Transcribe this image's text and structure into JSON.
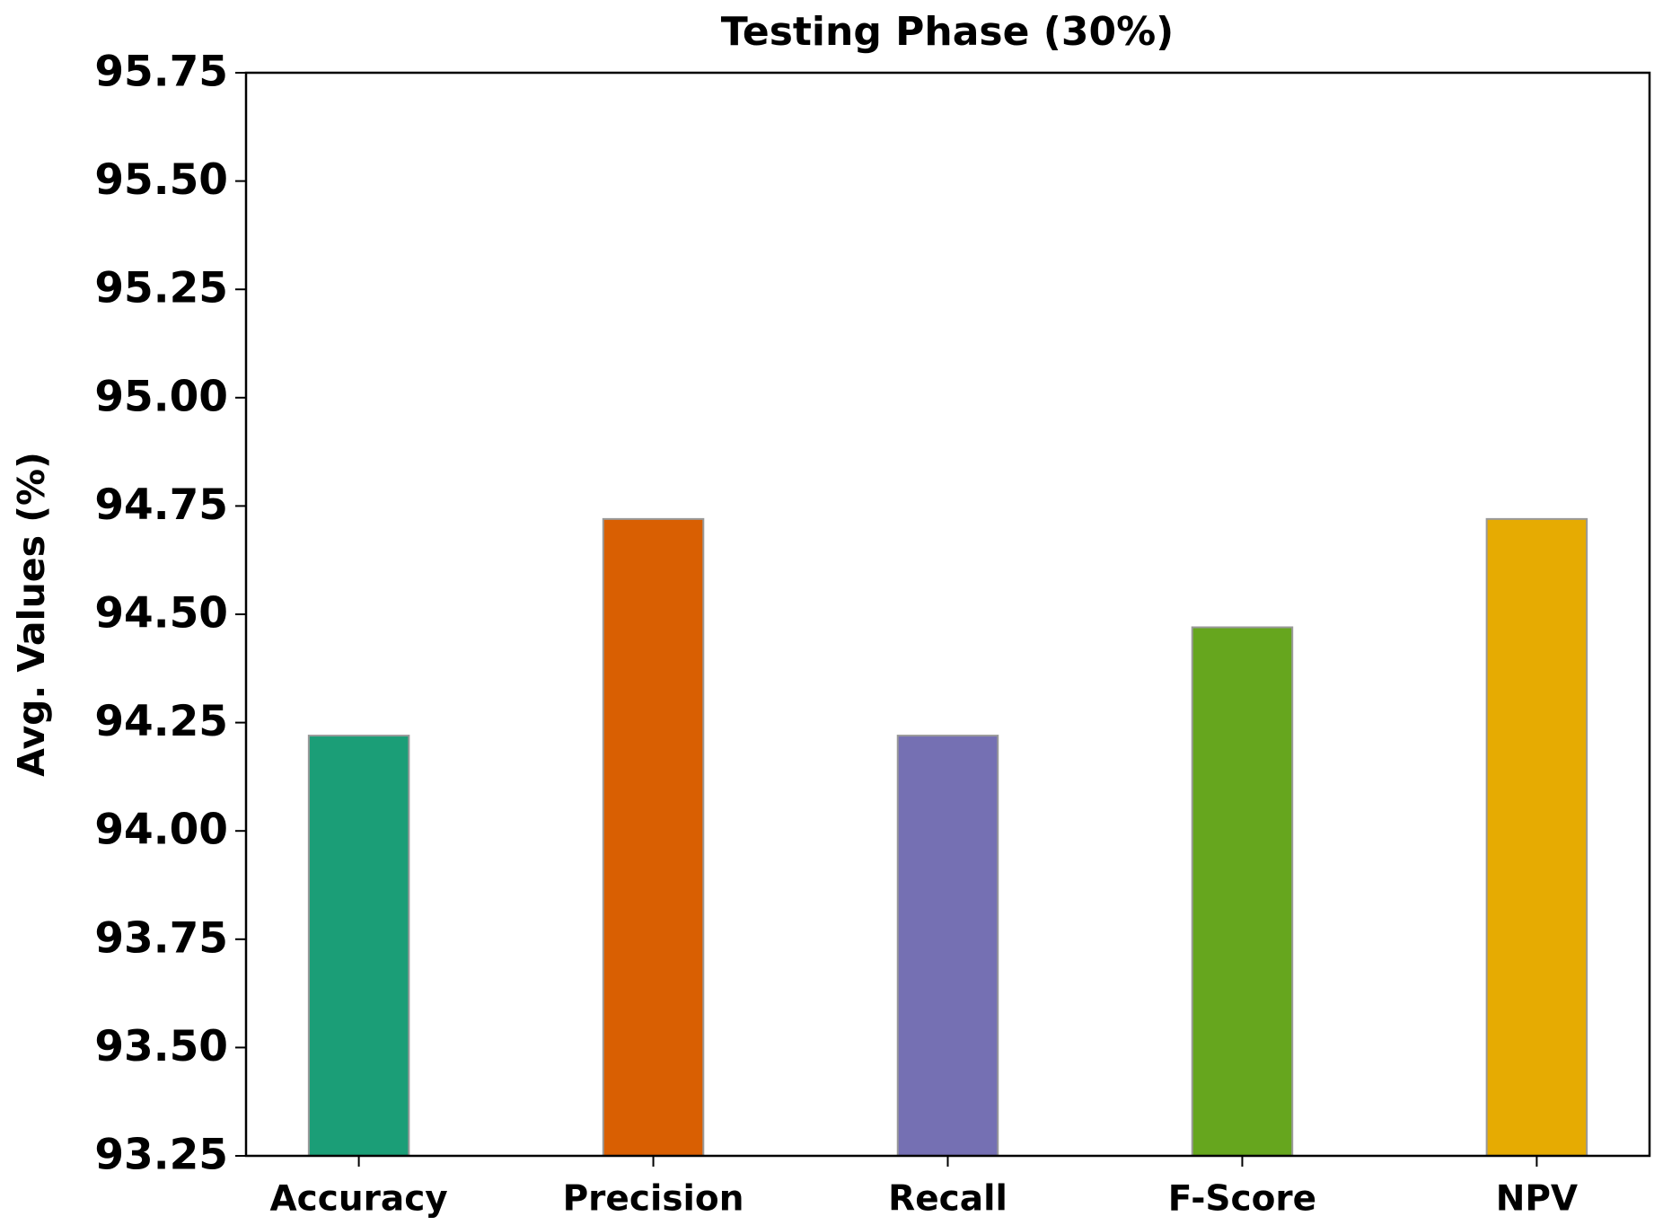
{
  "chart_data": {
    "type": "bar",
    "title": "Testing Phase (30%)",
    "y_label": "Avg. Values (%)",
    "categories": [
      "Accuracy",
      "Precision",
      "Recall",
      "F-Score",
      "NPV"
    ],
    "values": [
      94.22,
      94.72,
      94.22,
      94.47,
      94.72
    ],
    "colors": [
      "#1b9e77",
      "#d95f02",
      "#7570b3",
      "#66a61e",
      "#e6ab02"
    ],
    "ylim": [
      93.25,
      95.75
    ],
    "yticks": [
      {
        "value": 93.25,
        "label": "93.25"
      },
      {
        "value": 93.5,
        "label": "93.50"
      },
      {
        "value": 93.75,
        "label": "93.75"
      },
      {
        "value": 94,
        "label": "94.00"
      },
      {
        "value": 94.25,
        "label": "94.25"
      },
      {
        "value": 94.5,
        "label": "94.50"
      },
      {
        "value": 94.75,
        "label": "94.75"
      },
      {
        "value": 95,
        "label": "95.00"
      },
      {
        "value": 95.25,
        "label": "95.25"
      },
      {
        "value": 95.5,
        "label": "95.50"
      },
      {
        "value": 95.75,
        "label": "95.75"
      }
    ],
    "grid": false
  }
}
